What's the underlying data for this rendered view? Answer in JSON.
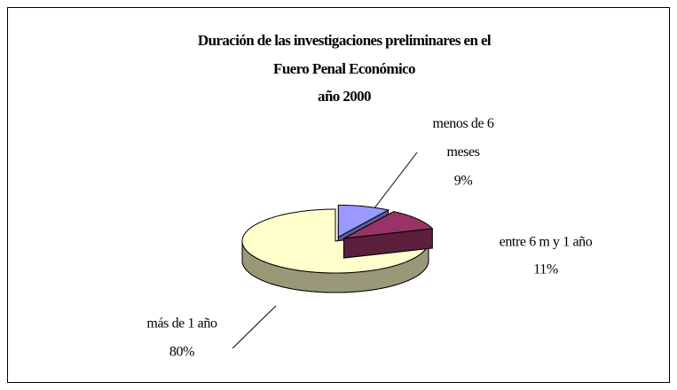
{
  "chart_data": {
    "type": "pie3d",
    "title": [
      "Duración de las investigaciones preliminares en el",
      "Fuero Penal Económico",
      "año 2000"
    ],
    "categories": [
      "menos de 6 meses",
      "entre 6 m y 1 año",
      "más de 1 año"
    ],
    "values": [
      9,
      11,
      80
    ],
    "value_labels": [
      "9%",
      "11%",
      "80%"
    ],
    "colors": [
      "#9999ff",
      "#993366",
      "#ffffcc"
    ]
  }
}
